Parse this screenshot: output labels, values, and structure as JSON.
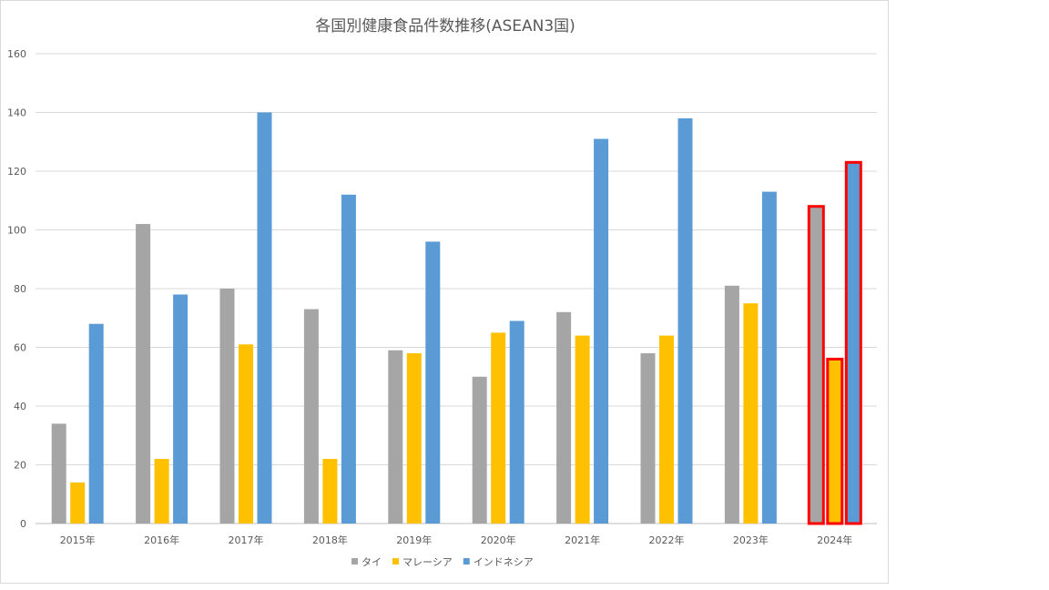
{
  "chart_data": {
    "type": "bar",
    "title": "各国別健康食品件数推移(ASEAN3国)",
    "categories": [
      "2015年",
      "2016年",
      "2017年",
      "2018年",
      "2019年",
      "2020年",
      "2021年",
      "2022年",
      "2023年",
      "2024年"
    ],
    "series": [
      {
        "name": "タイ",
        "color": "#a5a5a5",
        "values": [
          34,
          102,
          80,
          73,
          59,
          50,
          72,
          58,
          81,
          108
        ]
      },
      {
        "name": "マレーシア",
        "color": "#ffc000",
        "values": [
          14,
          22,
          61,
          22,
          58,
          65,
          64,
          64,
          75,
          56
        ]
      },
      {
        "name": "インドネシア",
        "color": "#5b9bd5",
        "values": [
          68,
          78,
          140,
          112,
          96,
          69,
          131,
          138,
          113,
          123
        ]
      }
    ],
    "ylim": [
      0,
      160
    ],
    "yticks": [
      0,
      20,
      40,
      60,
      80,
      100,
      120,
      140,
      160
    ],
    "grid": true,
    "legend": "bottom",
    "highlight": {
      "category": "2024年",
      "color": "#ff0000"
    }
  }
}
